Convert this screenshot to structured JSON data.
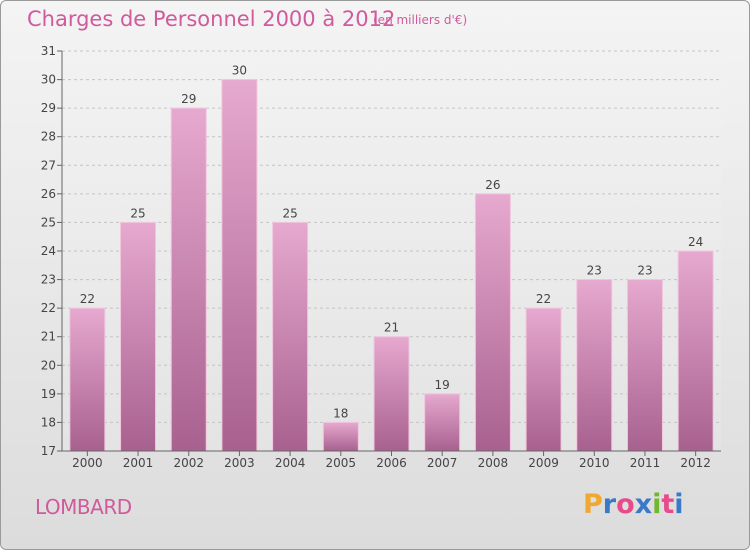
{
  "header": {
    "title": "Charges de Personnel 2000 à 2012",
    "subtitle": "(en milliers d'€)"
  },
  "footer": {
    "commune": "LOMBARD",
    "logo_letters": [
      "P",
      "r",
      "o",
      "x",
      "i",
      "t",
      "i"
    ]
  },
  "colors": {
    "title": "#d05a9c",
    "bar_top": "#e6a9cf",
    "bar_bottom": "#a8618f",
    "logo": [
      "#f0a830",
      "#3a78c8",
      "#e84a8a",
      "#3a78c8",
      "#70b830",
      "#e84a8a",
      "#3a78c8"
    ]
  },
  "chart_data": {
    "type": "bar",
    "categories": [
      "2000",
      "2001",
      "2002",
      "2003",
      "2004",
      "2005",
      "2006",
      "2007",
      "2008",
      "2009",
      "2010",
      "2011",
      "2012"
    ],
    "values": [
      22,
      25,
      29,
      30,
      25,
      18,
      21,
      19,
      26,
      22,
      23,
      23,
      24
    ],
    "ylim": [
      17,
      31
    ],
    "yticks": [
      17,
      18,
      19,
      20,
      21,
      22,
      23,
      24,
      25,
      26,
      27,
      28,
      29,
      30,
      31
    ],
    "grid": true,
    "data_labels": true
  }
}
